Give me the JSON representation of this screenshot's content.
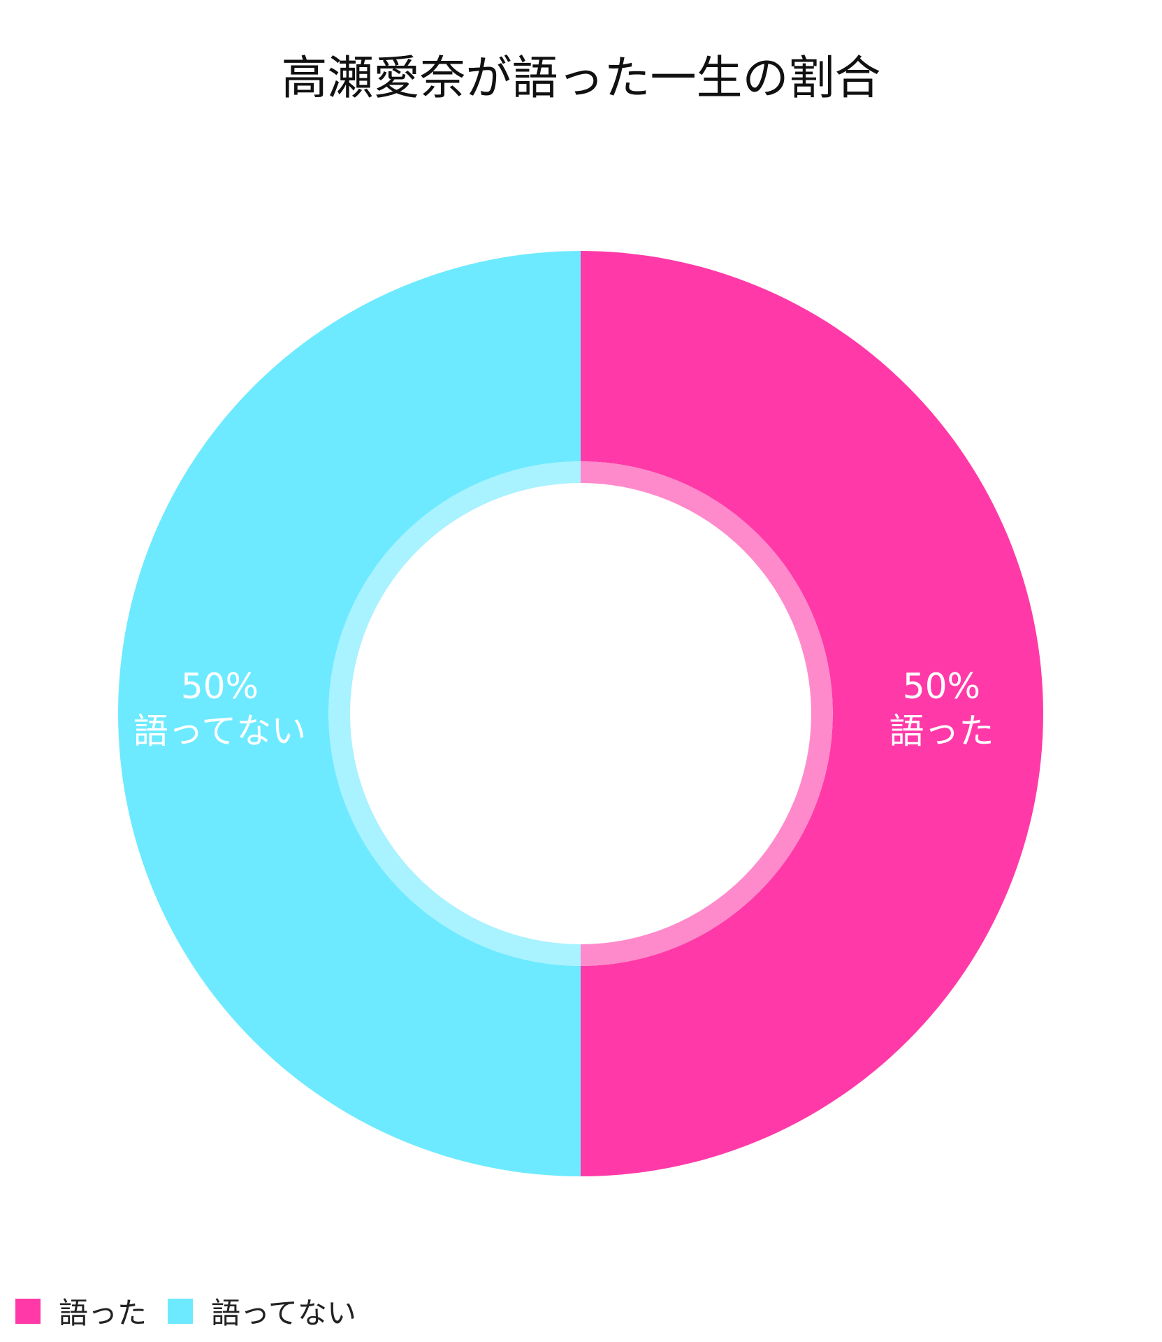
{
  "chart_data": {
    "type": "pie",
    "variant": "donut",
    "title": "高瀬愛奈が語った一生の割合",
    "slices": [
      {
        "label": "語った",
        "value": 50,
        "value_label": "50%",
        "color": "#FF3AA8",
        "inner_color": "#FF8ACB"
      },
      {
        "label": "語ってない",
        "value": 50,
        "value_label": "50%",
        "color": "#6DEAFF",
        "inner_color": "#A9F2FF"
      }
    ],
    "legend": {
      "placement": "bottom-left",
      "items": [
        "語った",
        "語ってない"
      ]
    }
  }
}
